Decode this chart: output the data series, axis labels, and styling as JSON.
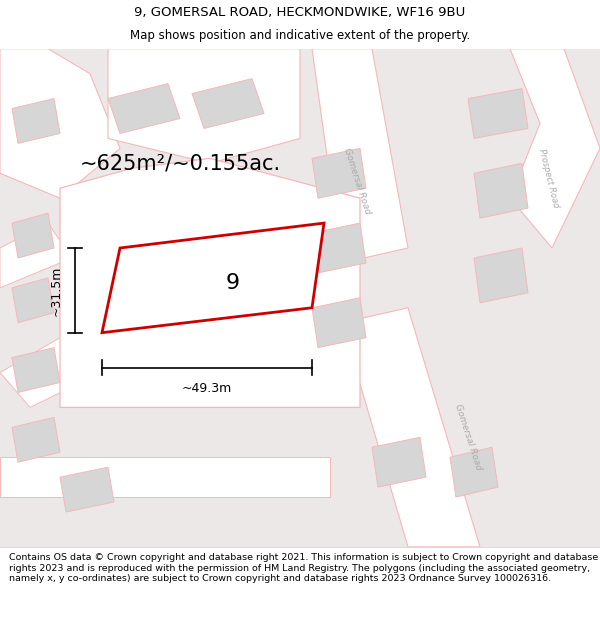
{
  "title_line1": "9, GOMERSAL ROAD, HECKMONDWIKE, WF16 9BU",
  "title_line2": "Map shows position and indicative extent of the property.",
  "footer_text": "Contains OS data © Crown copyright and database right 2021. This information is subject to Crown copyright and database rights 2023 and is reproduced with the permission of HM Land Registry. The polygons (including the associated geometry, namely x, y co-ordinates) are subject to Crown copyright and database rights 2023 Ordnance Survey 100026316.",
  "area_label": "~625m²/~0.155ac.",
  "number_label": "9",
  "width_label": "~49.3m",
  "height_label": "~31.5m",
  "road_fill": "#ffffff",
  "road_stroke": "#f5b8b8",
  "building_fill": "#d6d6d6",
  "building_stroke": "#f5b8b8",
  "property_stroke": "#cc0000",
  "property_fill": "none",
  "map_bg": "#ede8e8",
  "title_fontsize": 9.5,
  "subtitle_fontsize": 8.5,
  "footer_fontsize": 6.8,
  "area_fontsize": 15,
  "number_fontsize": 16,
  "dim_fontsize": 9
}
